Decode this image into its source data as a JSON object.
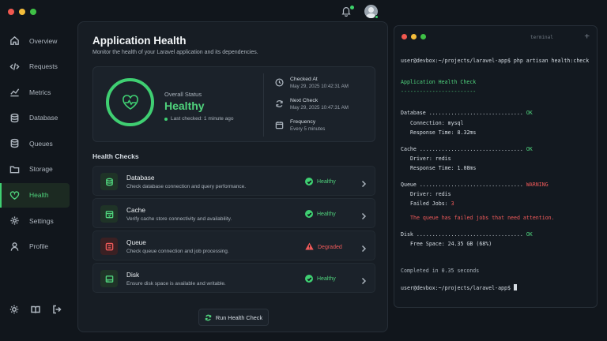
{
  "window": {
    "colors": {
      "close": "#f0584f",
      "minimize": "#f4bd3b",
      "maximize": "#3fc146"
    }
  },
  "topbar": {
    "icons": [
      "bell-icon",
      "avatar"
    ]
  },
  "sidebar": {
    "items": [
      {
        "label": "Overview",
        "icon": "home-icon"
      },
      {
        "label": "Requests",
        "icon": "code-icon"
      },
      {
        "label": "Metrics",
        "icon": "chart-icon"
      },
      {
        "label": "Database",
        "icon": "database-icon"
      },
      {
        "label": "Queues",
        "icon": "stack-icon"
      },
      {
        "label": "Storage",
        "icon": "folder-icon"
      },
      {
        "label": "Health",
        "icon": "heart-icon",
        "active": true
      },
      {
        "label": "Settings",
        "icon": "gear-icon"
      },
      {
        "label": "Profile",
        "icon": "user-icon"
      }
    ],
    "bottom_icons": [
      "sun-icon",
      "book-icon",
      "logout-icon"
    ]
  },
  "main": {
    "title": "Application Health",
    "subtitle": "Monitor the health of your Laravel application and its dependencies.",
    "status": {
      "label": "Overall Status",
      "value": "Healthy",
      "last_checked": "Last checked: 1 minute ago",
      "checked_at_label": "Checked At",
      "checked_at_value": "May 29, 2025 10:42:31 AM",
      "next_check_label": "Next Check",
      "next_check_value": "May 29, 2025 10:47:31 AM",
      "frequency_label": "Frequency",
      "frequency_value": "Every 5 minutes"
    },
    "checks_title": "Health Checks",
    "checks": [
      {
        "name": "Database",
        "desc": "Check database connection and query performance.",
        "status": "Healthy"
      },
      {
        "name": "Cache",
        "desc": "Verify cache store connectivity and availability.",
        "status": "Healthy"
      },
      {
        "name": "Queue",
        "desc": "Check queue connection and job processing.",
        "status": "Degraded"
      },
      {
        "name": "Disk",
        "desc": "Ensure disk space is available and writable.",
        "status": "Healthy"
      }
    ],
    "run_button": "Run Health Check"
  },
  "terminal": {
    "title": "terminal",
    "plus": "+",
    "prompt": "user@devbox:~/projects/laravel-app$",
    "command": " php artisan health:check",
    "heading": "Application Health Check",
    "heading_rule": "------------------------",
    "db_line": "Database ..............................",
    "db_status": "OK",
    "db_conn": "Connection: mysql",
    "db_resp": "Response Time: 8.32ms",
    "cache_line": "Cache .................................",
    "cache_status": "OK",
    "cache_driver": "Driver: redis",
    "cache_resp": "Response Time: 1.08ms",
    "queue_line": "Queue .................................",
    "queue_status": "WARNING",
    "queue_driver": "Driver: redis",
    "queue_failed_label": "Failed Jobs: ",
    "queue_failed_value": "3",
    "queue_msg": "The queue has failed jobs that need attention.",
    "disk_line": "Disk ..................................",
    "disk_status": "OK",
    "disk_free": "Free Space: 24.35 GB (68%)",
    "completed": "Completed in 0.35 seconds",
    "final_prompt": "user@devbox:~/projects/laravel-app$"
  }
}
